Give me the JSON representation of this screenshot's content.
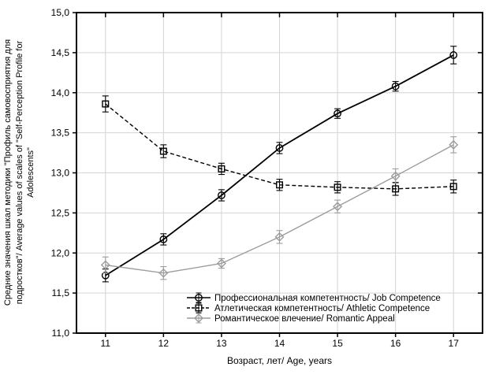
{
  "figure": {
    "y_title_lines": {
      "l1": "Средние значения шкал методики \"Профиль самовосприятия для",
      "l2": "подростков\"/ Average values of scales of \"Self-Perception Profile for",
      "l3": "Adolescents\""
    }
  },
  "chart_data": {
    "type": "line",
    "x": [
      11,
      12,
      13,
      14,
      15,
      16,
      17
    ],
    "x_tick_labels": [
      "11",
      "12",
      "13",
      "14",
      "15",
      "16",
      "17"
    ],
    "xlabel": "Возраст, лет/ Age, years",
    "ylabel": "Средние значения шкал методики \"Профиль самовосприятия для подростков\"/ Average values of scales of \"Self-Perception Profile for Adolescents\"",
    "ylim": [
      11.0,
      15.0
    ],
    "y_tick_step": 0.5,
    "y_tick_labels": [
      "11,0",
      "11,5",
      "12,0",
      "12,5",
      "13,0",
      "13,5",
      "14,0",
      "14,5",
      "15,0"
    ],
    "grid": true,
    "legend_position": "inside-bottom-center",
    "colors": {
      "grid": "#d4d4d4",
      "axis": "#000000",
      "text": "#000000",
      "gray_series": "#9c9c9c"
    },
    "series": [
      {
        "name": "Профессиональная компетентность/ Job Competence",
        "marker": "circle",
        "line": "solid",
        "color": "#000000",
        "values": [
          11.72,
          12.17,
          12.72,
          13.31,
          13.74,
          14.08,
          14.47
        ],
        "errors": [
          0.08,
          0.07,
          0.07,
          0.07,
          0.06,
          0.06,
          0.11
        ]
      },
      {
        "name": "Атлетическая компетентность/ Athletic Competence",
        "marker": "square",
        "line": "dashed",
        "color": "#000000",
        "values": [
          13.86,
          13.27,
          13.05,
          12.85,
          12.82,
          12.8,
          12.83
        ],
        "errors": [
          0.1,
          0.08,
          0.07,
          0.07,
          0.07,
          0.08,
          0.08
        ]
      },
      {
        "name": "Романтическое влечение/ Romantic Appeal",
        "marker": "diamond",
        "line": "solid",
        "color": "#9c9c9c",
        "values": [
          11.85,
          11.75,
          11.87,
          12.2,
          12.58,
          12.96,
          13.35
        ],
        "errors": [
          0.1,
          0.08,
          0.06,
          0.08,
          0.08,
          0.09,
          0.1
        ]
      }
    ]
  }
}
